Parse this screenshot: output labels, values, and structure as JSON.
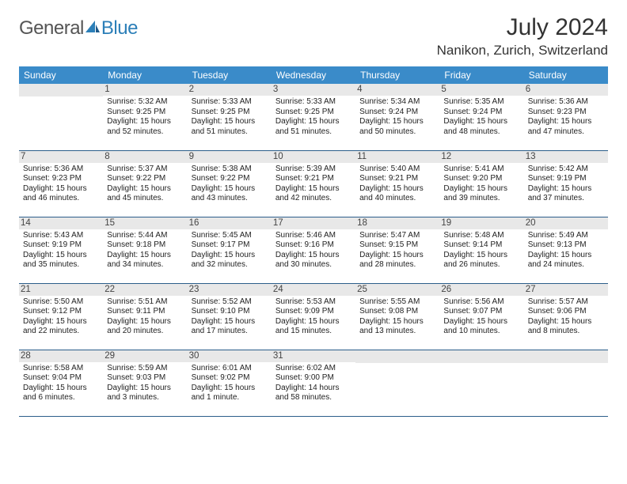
{
  "brand": {
    "part1": "General",
    "part2": "Blue"
  },
  "title": "July 2024",
  "location": "Nanikon, Zurich, Switzerland",
  "styling": {
    "header_bg": "#3a8bc9",
    "header_text": "#ffffff",
    "daynum_bg": "#e8e8e8",
    "row_border": "#2c5e8a",
    "page_bg": "#ffffff",
    "title_fontsize": 30,
    "location_fontsize": 17,
    "dayhead_fontsize": 12,
    "cell_fontsize": 10
  },
  "day_headers": [
    "Sunday",
    "Monday",
    "Tuesday",
    "Wednesday",
    "Thursday",
    "Friday",
    "Saturday"
  ],
  "weeks": [
    [
      {
        "num": "",
        "lines": []
      },
      {
        "num": "1",
        "lines": [
          "Sunrise: 5:32 AM",
          "Sunset: 9:25 PM",
          "Daylight: 15 hours and 52 minutes."
        ]
      },
      {
        "num": "2",
        "lines": [
          "Sunrise: 5:33 AM",
          "Sunset: 9:25 PM",
          "Daylight: 15 hours and 51 minutes."
        ]
      },
      {
        "num": "3",
        "lines": [
          "Sunrise: 5:33 AM",
          "Sunset: 9:25 PM",
          "Daylight: 15 hours and 51 minutes."
        ]
      },
      {
        "num": "4",
        "lines": [
          "Sunrise: 5:34 AM",
          "Sunset: 9:24 PM",
          "Daylight: 15 hours and 50 minutes."
        ]
      },
      {
        "num": "5",
        "lines": [
          "Sunrise: 5:35 AM",
          "Sunset: 9:24 PM",
          "Daylight: 15 hours and 48 minutes."
        ]
      },
      {
        "num": "6",
        "lines": [
          "Sunrise: 5:36 AM",
          "Sunset: 9:23 PM",
          "Daylight: 15 hours and 47 minutes."
        ]
      }
    ],
    [
      {
        "num": "7",
        "lines": [
          "Sunrise: 5:36 AM",
          "Sunset: 9:23 PM",
          "Daylight: 15 hours and 46 minutes."
        ]
      },
      {
        "num": "8",
        "lines": [
          "Sunrise: 5:37 AM",
          "Sunset: 9:22 PM",
          "Daylight: 15 hours and 45 minutes."
        ]
      },
      {
        "num": "9",
        "lines": [
          "Sunrise: 5:38 AM",
          "Sunset: 9:22 PM",
          "Daylight: 15 hours and 43 minutes."
        ]
      },
      {
        "num": "10",
        "lines": [
          "Sunrise: 5:39 AM",
          "Sunset: 9:21 PM",
          "Daylight: 15 hours and 42 minutes."
        ]
      },
      {
        "num": "11",
        "lines": [
          "Sunrise: 5:40 AM",
          "Sunset: 9:21 PM",
          "Daylight: 15 hours and 40 minutes."
        ]
      },
      {
        "num": "12",
        "lines": [
          "Sunrise: 5:41 AM",
          "Sunset: 9:20 PM",
          "Daylight: 15 hours and 39 minutes."
        ]
      },
      {
        "num": "13",
        "lines": [
          "Sunrise: 5:42 AM",
          "Sunset: 9:19 PM",
          "Daylight: 15 hours and 37 minutes."
        ]
      }
    ],
    [
      {
        "num": "14",
        "lines": [
          "Sunrise: 5:43 AM",
          "Sunset: 9:19 PM",
          "Daylight: 15 hours and 35 minutes."
        ]
      },
      {
        "num": "15",
        "lines": [
          "Sunrise: 5:44 AM",
          "Sunset: 9:18 PM",
          "Daylight: 15 hours and 34 minutes."
        ]
      },
      {
        "num": "16",
        "lines": [
          "Sunrise: 5:45 AM",
          "Sunset: 9:17 PM",
          "Daylight: 15 hours and 32 minutes."
        ]
      },
      {
        "num": "17",
        "lines": [
          "Sunrise: 5:46 AM",
          "Sunset: 9:16 PM",
          "Daylight: 15 hours and 30 minutes."
        ]
      },
      {
        "num": "18",
        "lines": [
          "Sunrise: 5:47 AM",
          "Sunset: 9:15 PM",
          "Daylight: 15 hours and 28 minutes."
        ]
      },
      {
        "num": "19",
        "lines": [
          "Sunrise: 5:48 AM",
          "Sunset: 9:14 PM",
          "Daylight: 15 hours and 26 minutes."
        ]
      },
      {
        "num": "20",
        "lines": [
          "Sunrise: 5:49 AM",
          "Sunset: 9:13 PM",
          "Daylight: 15 hours and 24 minutes."
        ]
      }
    ],
    [
      {
        "num": "21",
        "lines": [
          "Sunrise: 5:50 AM",
          "Sunset: 9:12 PM",
          "Daylight: 15 hours and 22 minutes."
        ]
      },
      {
        "num": "22",
        "lines": [
          "Sunrise: 5:51 AM",
          "Sunset: 9:11 PM",
          "Daylight: 15 hours and 20 minutes."
        ]
      },
      {
        "num": "23",
        "lines": [
          "Sunrise: 5:52 AM",
          "Sunset: 9:10 PM",
          "Daylight: 15 hours and 17 minutes."
        ]
      },
      {
        "num": "24",
        "lines": [
          "Sunrise: 5:53 AM",
          "Sunset: 9:09 PM",
          "Daylight: 15 hours and 15 minutes."
        ]
      },
      {
        "num": "25",
        "lines": [
          "Sunrise: 5:55 AM",
          "Sunset: 9:08 PM",
          "Daylight: 15 hours and 13 minutes."
        ]
      },
      {
        "num": "26",
        "lines": [
          "Sunrise: 5:56 AM",
          "Sunset: 9:07 PM",
          "Daylight: 15 hours and 10 minutes."
        ]
      },
      {
        "num": "27",
        "lines": [
          "Sunrise: 5:57 AM",
          "Sunset: 9:06 PM",
          "Daylight: 15 hours and 8 minutes."
        ]
      }
    ],
    [
      {
        "num": "28",
        "lines": [
          "Sunrise: 5:58 AM",
          "Sunset: 9:04 PM",
          "Daylight: 15 hours and 6 minutes."
        ]
      },
      {
        "num": "29",
        "lines": [
          "Sunrise: 5:59 AM",
          "Sunset: 9:03 PM",
          "Daylight: 15 hours and 3 minutes."
        ]
      },
      {
        "num": "30",
        "lines": [
          "Sunrise: 6:01 AM",
          "Sunset: 9:02 PM",
          "Daylight: 15 hours and 1 minute."
        ]
      },
      {
        "num": "31",
        "lines": [
          "Sunrise: 6:02 AM",
          "Sunset: 9:00 PM",
          "Daylight: 14 hours and 58 minutes."
        ]
      },
      {
        "num": "",
        "lines": []
      },
      {
        "num": "",
        "lines": []
      },
      {
        "num": "",
        "lines": []
      }
    ]
  ]
}
